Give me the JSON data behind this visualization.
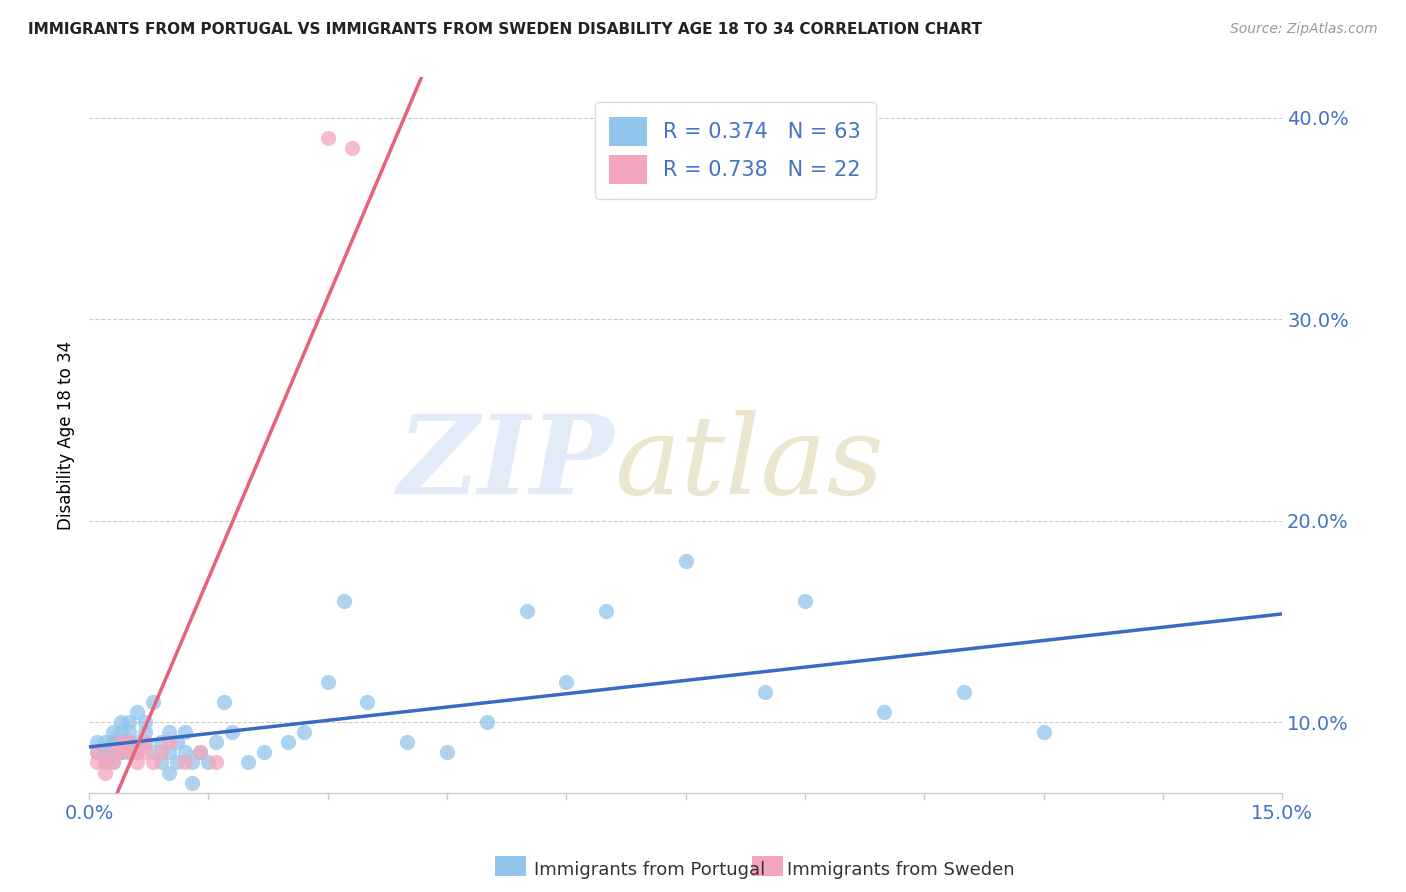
{
  "title": "IMMIGRANTS FROM PORTUGAL VS IMMIGRANTS FROM SWEDEN DISABILITY AGE 18 TO 34 CORRELATION CHART",
  "source": "Source: ZipAtlas.com",
  "ylabel": "Disability Age 18 to 34",
  "xlim": [
    0.0,
    0.15
  ],
  "ylim": [
    0.065,
    0.42
  ],
  "yticks": [
    0.1,
    0.2,
    0.3,
    0.4
  ],
  "yticklabels": [
    "10.0%",
    "20.0%",
    "30.0%",
    "40.0%"
  ],
  "r_portugal": 0.374,
  "n_portugal": 63,
  "r_sweden": 0.738,
  "n_sweden": 22,
  "color_portugal": "#92C5EC",
  "color_sweden": "#F4A6BE",
  "line_color_portugal": "#3A6BC4",
  "line_color_sweden": "#E8607A",
  "portugal_x": [
    0.001,
    0.001,
    0.002,
    0.002,
    0.002,
    0.003,
    0.003,
    0.003,
    0.003,
    0.003,
    0.004,
    0.004,
    0.004,
    0.004,
    0.004,
    0.005,
    0.005,
    0.005,
    0.005,
    0.005,
    0.006,
    0.006,
    0.006,
    0.007,
    0.007,
    0.007,
    0.008,
    0.008,
    0.009,
    0.009,
    0.01,
    0.01,
    0.01,
    0.011,
    0.011,
    0.012,
    0.012,
    0.013,
    0.013,
    0.014,
    0.015,
    0.016,
    0.017,
    0.018,
    0.02,
    0.022,
    0.025,
    0.027,
    0.03,
    0.032,
    0.035,
    0.04,
    0.045,
    0.05,
    0.055,
    0.06,
    0.065,
    0.075,
    0.085,
    0.09,
    0.1,
    0.11,
    0.12
  ],
  "portugal_y": [
    0.085,
    0.09,
    0.085,
    0.09,
    0.08,
    0.09,
    0.085,
    0.08,
    0.09,
    0.095,
    0.09,
    0.085,
    0.1,
    0.095,
    0.085,
    0.1,
    0.09,
    0.085,
    0.095,
    0.09,
    0.105,
    0.085,
    0.09,
    0.1,
    0.095,
    0.09,
    0.11,
    0.085,
    0.09,
    0.08,
    0.095,
    0.085,
    0.075,
    0.09,
    0.08,
    0.085,
    0.095,
    0.08,
    0.07,
    0.085,
    0.08,
    0.09,
    0.11,
    0.095,
    0.08,
    0.085,
    0.09,
    0.095,
    0.12,
    0.16,
    0.11,
    0.09,
    0.085,
    0.1,
    0.155,
    0.12,
    0.155,
    0.18,
    0.115,
    0.16,
    0.105,
    0.115,
    0.095
  ],
  "sweden_x": [
    0.001,
    0.001,
    0.002,
    0.002,
    0.003,
    0.003,
    0.004,
    0.004,
    0.005,
    0.005,
    0.006,
    0.006,
    0.007,
    0.007,
    0.008,
    0.009,
    0.01,
    0.012,
    0.014,
    0.016,
    0.03,
    0.033
  ],
  "sweden_y": [
    0.08,
    0.085,
    0.08,
    0.075,
    0.085,
    0.08,
    0.09,
    0.085,
    0.09,
    0.085,
    0.08,
    0.085,
    0.09,
    0.085,
    0.08,
    0.085,
    0.09,
    0.08,
    0.085,
    0.08,
    0.39,
    0.385
  ]
}
